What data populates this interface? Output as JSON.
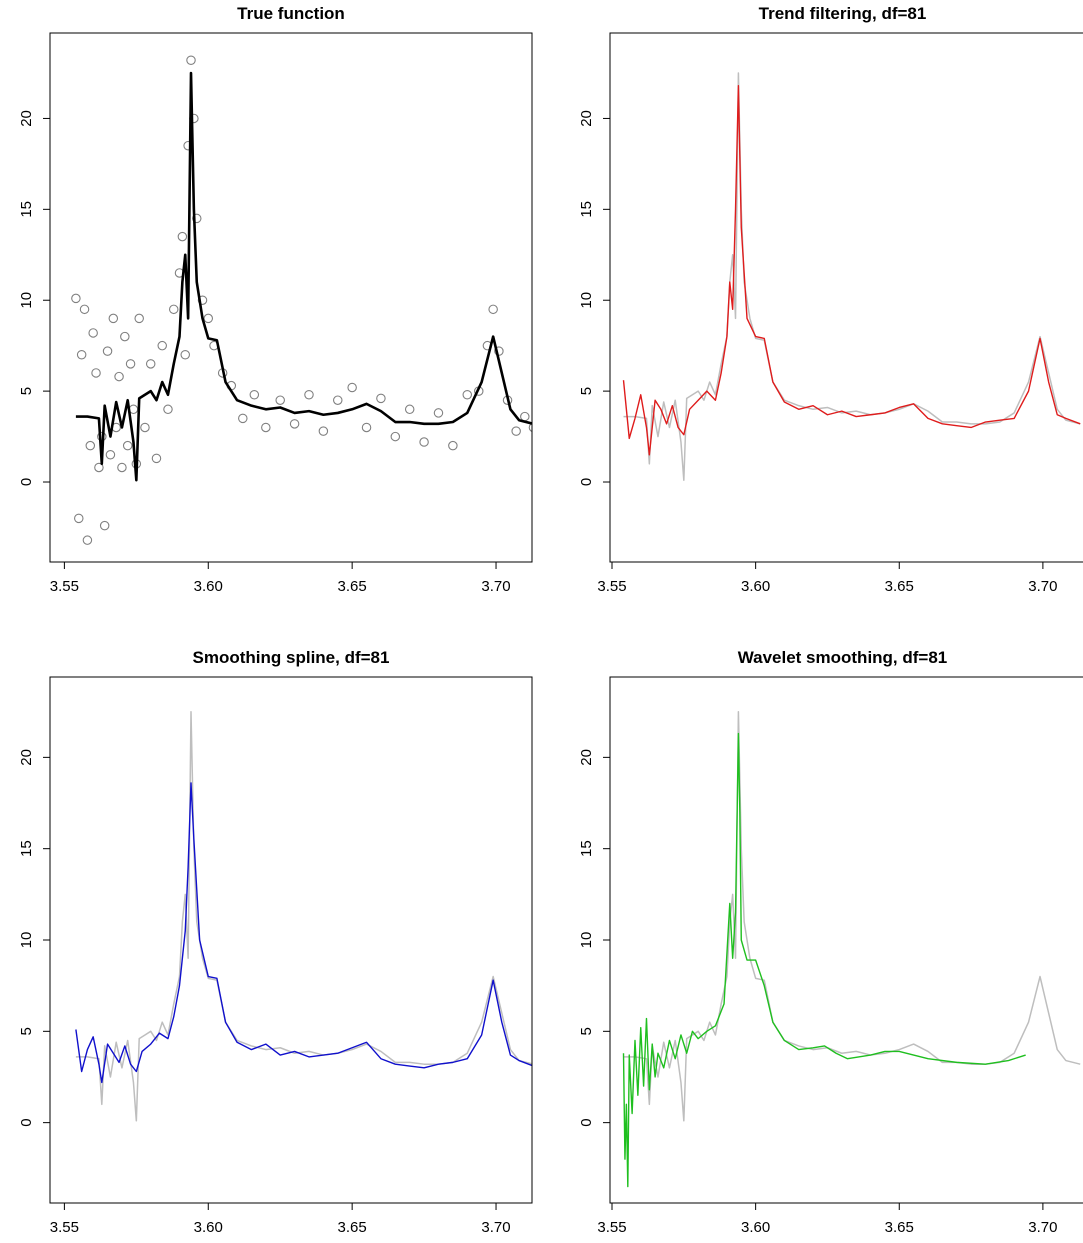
{
  "chart_data": [
    {
      "type": "line",
      "title": "True function",
      "xlim": [
        3.545,
        3.7125
      ],
      "ylim": [
        -4.4,
        24.7
      ],
      "xticks": [
        3.55,
        {
          "value": 3.6,
          "label": "3.60"
        },
        3.65,
        {
          "value": 3.7,
          "label": "3.70"
        }
      ],
      "yticks": [
        0,
        5,
        10,
        15,
        20
      ],
      "series": [
        {
          "style": "points",
          "color": "#808080",
          "x": [
            3.554,
            3.555,
            3.556,
            3.557,
            3.558,
            3.559,
            3.56,
            3.561,
            3.562,
            3.563,
            3.564,
            3.565,
            3.566,
            3.567,
            3.568,
            3.569,
            3.57,
            3.571,
            3.572,
            3.573,
            3.574,
            3.575,
            3.576,
            3.578,
            3.58,
            3.582,
            3.584,
            3.586,
            3.588,
            3.59,
            3.591,
            3.592,
            3.593,
            3.594,
            3.595,
            3.596,
            3.598,
            3.6,
            3.602,
            3.605,
            3.608,
            3.612,
            3.616,
            3.62,
            3.625,
            3.63,
            3.635,
            3.64,
            3.645,
            3.65,
            3.655,
            3.66,
            3.665,
            3.67,
            3.675,
            3.68,
            3.685,
            3.69,
            3.694,
            3.697,
            3.699,
            3.701,
            3.704,
            3.707,
            3.71,
            3.713
          ],
          "values": [
            10.1,
            -2.0,
            7.0,
            9.5,
            -3.2,
            2.0,
            8.2,
            6.0,
            0.8,
            2.5,
            -2.4,
            7.2,
            1.5,
            9.0,
            3.0,
            5.8,
            0.8,
            8.0,
            2.0,
            6.5,
            4.0,
            1.0,
            9.0,
            3.0,
            6.5,
            1.3,
            7.5,
            4.0,
            9.5,
            11.5,
            13.5,
            7.0,
            18.5,
            23.2,
            20.0,
            14.5,
            10.0,
            9.0,
            7.5,
            6.0,
            5.3,
            3.5,
            4.8,
            3.0,
            4.5,
            3.2,
            4.8,
            2.8,
            4.5,
            5.2,
            3.0,
            4.6,
            2.5,
            4.0,
            2.2,
            3.8,
            2.0,
            4.8,
            5.0,
            7.5,
            9.5,
            7.2,
            4.5,
            2.8,
            3.6,
            3.0
          ]
        },
        {
          "style": "line",
          "color": "#000000",
          "width": 2.6,
          "x": [
            3.554,
            3.558,
            3.562,
            3.563,
            3.564,
            3.566,
            3.568,
            3.57,
            3.572,
            3.574,
            3.575,
            3.576,
            3.578,
            3.58,
            3.582,
            3.584,
            3.586,
            3.588,
            3.59,
            3.591,
            3.592,
            3.593,
            3.594,
            3.595,
            3.596,
            3.598,
            3.6,
            3.603,
            3.606,
            3.61,
            3.615,
            3.62,
            3.625,
            3.63,
            3.635,
            3.64,
            3.645,
            3.65,
            3.655,
            3.66,
            3.665,
            3.67,
            3.675,
            3.68,
            3.685,
            3.69,
            3.695,
            3.699,
            3.702,
            3.705,
            3.708,
            3.713
          ],
          "values": [
            3.6,
            3.6,
            3.5,
            1.0,
            4.2,
            2.5,
            4.4,
            3.0,
            4.5,
            2.2,
            0.1,
            4.6,
            4.8,
            5.0,
            4.5,
            5.5,
            4.8,
            6.5,
            8.0,
            11.0,
            12.5,
            9.0,
            22.5,
            15.0,
            11.0,
            9.0,
            7.9,
            7.8,
            5.5,
            4.5,
            4.2,
            4.0,
            4.1,
            3.8,
            3.9,
            3.7,
            3.8,
            4.0,
            4.3,
            3.9,
            3.3,
            3.3,
            3.2,
            3.2,
            3.3,
            3.8,
            5.5,
            8.0,
            6.0,
            4.0,
            3.4,
            3.2
          ]
        }
      ]
    },
    {
      "type": "line",
      "title": "Trend filtering, df=81",
      "xlim": [
        3.5493,
        3.7164
      ],
      "ylim": [
        -4.4,
        24.7
      ],
      "xticks": [
        3.55,
        {
          "value": 3.6,
          "label": "3.60"
        },
        3.65,
        {
          "value": 3.7,
          "label": "3.70"
        }
      ],
      "yticks": [
        0,
        5,
        10,
        15,
        20
      ],
      "series": [
        {
          "style": "line",
          "color": "#bebebe",
          "width": 1.5,
          "x": [
            3.554,
            3.558,
            3.562,
            3.563,
            3.564,
            3.566,
            3.568,
            3.57,
            3.572,
            3.574,
            3.575,
            3.576,
            3.578,
            3.58,
            3.582,
            3.584,
            3.586,
            3.588,
            3.59,
            3.591,
            3.592,
            3.593,
            3.594,
            3.595,
            3.596,
            3.598,
            3.6,
            3.603,
            3.606,
            3.61,
            3.615,
            3.62,
            3.625,
            3.63,
            3.635,
            3.64,
            3.645,
            3.65,
            3.655,
            3.66,
            3.665,
            3.67,
            3.675,
            3.68,
            3.685,
            3.69,
            3.695,
            3.699,
            3.702,
            3.705,
            3.708,
            3.713
          ],
          "values": [
            3.6,
            3.6,
            3.5,
            1.0,
            4.2,
            2.5,
            4.4,
            3.0,
            4.5,
            2.2,
            0.1,
            4.6,
            4.8,
            5.0,
            4.5,
            5.5,
            4.8,
            6.5,
            8.0,
            11.0,
            12.5,
            9.0,
            22.5,
            15.0,
            11.0,
            9.0,
            7.9,
            7.8,
            5.5,
            4.5,
            4.2,
            4.0,
            4.1,
            3.8,
            3.9,
            3.7,
            3.8,
            4.0,
            4.3,
            3.9,
            3.3,
            3.3,
            3.2,
            3.2,
            3.3,
            3.8,
            5.5,
            8.0,
            6.0,
            4.0,
            3.4,
            3.2
          ]
        },
        {
          "style": "line",
          "color": "#df1c1c",
          "width": 1.4,
          "x": [
            3.554,
            3.556,
            3.558,
            3.56,
            3.562,
            3.563,
            3.565,
            3.567,
            3.569,
            3.571,
            3.573,
            3.575,
            3.577,
            3.58,
            3.583,
            3.586,
            3.588,
            3.59,
            3.591,
            3.592,
            3.593,
            3.594,
            3.595,
            3.597,
            3.6,
            3.603,
            3.606,
            3.61,
            3.615,
            3.62,
            3.625,
            3.63,
            3.635,
            3.64,
            3.645,
            3.65,
            3.655,
            3.66,
            3.665,
            3.67,
            3.675,
            3.68,
            3.685,
            3.69,
            3.695,
            3.699,
            3.702,
            3.705,
            3.708,
            3.713
          ],
          "values": [
            5.6,
            2.4,
            3.5,
            4.8,
            3.0,
            1.5,
            4.5,
            4.0,
            3.2,
            4.2,
            3.0,
            2.6,
            4.0,
            4.5,
            5.0,
            4.5,
            6.0,
            8.0,
            11.0,
            9.5,
            15.0,
            21.8,
            14.0,
            9.0,
            8.0,
            7.9,
            5.5,
            4.4,
            4.0,
            4.2,
            3.7,
            3.9,
            3.6,
            3.7,
            3.8,
            4.1,
            4.3,
            3.5,
            3.2,
            3.1,
            3.0,
            3.3,
            3.4,
            3.5,
            5.0,
            7.9,
            5.5,
            3.7,
            3.5,
            3.2
          ]
        }
      ]
    },
    {
      "type": "line",
      "title": "Smoothing spline, df=81",
      "xlim": [
        3.545,
        3.7125
      ],
      "ylim": [
        -4.4,
        24.4
      ],
      "xticks": [
        3.55,
        {
          "value": 3.6,
          "label": "3.60"
        },
        3.65,
        {
          "value": 3.7,
          "label": "3.70"
        }
      ],
      "yticks": [
        0,
        5,
        10,
        15,
        20
      ],
      "series": [
        {
          "style": "line",
          "color": "#bebebe",
          "width": 1.5,
          "x": [
            3.554,
            3.558,
            3.562,
            3.563,
            3.564,
            3.566,
            3.568,
            3.57,
            3.572,
            3.574,
            3.575,
            3.576,
            3.578,
            3.58,
            3.582,
            3.584,
            3.586,
            3.588,
            3.59,
            3.591,
            3.592,
            3.593,
            3.594,
            3.595,
            3.596,
            3.598,
            3.6,
            3.603,
            3.606,
            3.61,
            3.615,
            3.62,
            3.625,
            3.63,
            3.635,
            3.64,
            3.645,
            3.65,
            3.655,
            3.66,
            3.665,
            3.67,
            3.675,
            3.68,
            3.685,
            3.69,
            3.695,
            3.699,
            3.702,
            3.705,
            3.708,
            3.713
          ],
          "values": [
            3.6,
            3.6,
            3.5,
            1.0,
            4.2,
            2.5,
            4.4,
            3.0,
            4.5,
            2.2,
            0.1,
            4.6,
            4.8,
            5.0,
            4.5,
            5.5,
            4.8,
            6.5,
            8.0,
            11.0,
            12.5,
            9.0,
            22.5,
            15.0,
            11.0,
            9.0,
            7.9,
            7.8,
            5.5,
            4.5,
            4.2,
            4.0,
            4.1,
            3.8,
            3.9,
            3.7,
            3.8,
            4.0,
            4.3,
            3.9,
            3.3,
            3.3,
            3.2,
            3.2,
            3.3,
            3.8,
            5.5,
            8.0,
            6.0,
            4.0,
            3.4,
            3.2
          ]
        },
        {
          "style": "line",
          "color": "#1010cc",
          "width": 1.4,
          "x": [
            3.554,
            3.556,
            3.558,
            3.56,
            3.562,
            3.563,
            3.565,
            3.567,
            3.569,
            3.571,
            3.573,
            3.575,
            3.577,
            3.58,
            3.583,
            3.586,
            3.588,
            3.59,
            3.591,
            3.592,
            3.593,
            3.594,
            3.595,
            3.597,
            3.6,
            3.603,
            3.606,
            3.61,
            3.615,
            3.62,
            3.625,
            3.63,
            3.635,
            3.64,
            3.645,
            3.65,
            3.655,
            3.66,
            3.665,
            3.67,
            3.675,
            3.68,
            3.685,
            3.69,
            3.695,
            3.699,
            3.702,
            3.705,
            3.708,
            3.713
          ],
          "values": [
            5.1,
            2.8,
            4.0,
            4.7,
            3.2,
            2.2,
            4.3,
            3.8,
            3.3,
            4.2,
            3.2,
            2.8,
            3.9,
            4.3,
            4.9,
            4.6,
            5.8,
            7.5,
            9.0,
            10.5,
            14.0,
            18.6,
            15.5,
            10.0,
            8.0,
            7.9,
            5.5,
            4.4,
            4.0,
            4.3,
            3.7,
            3.9,
            3.6,
            3.7,
            3.8,
            4.1,
            4.4,
            3.5,
            3.2,
            3.1,
            3.0,
            3.2,
            3.3,
            3.5,
            4.8,
            7.8,
            5.5,
            3.7,
            3.4,
            3.1
          ]
        }
      ]
    },
    {
      "type": "line",
      "title": "Wavelet smoothing, df=81",
      "xlim": [
        3.5493,
        3.7164
      ],
      "ylim": [
        -4.4,
        24.4
      ],
      "xticks": [
        3.55,
        {
          "value": 3.6,
          "label": "3.60"
        },
        3.65,
        {
          "value": 3.7,
          "label": "3.70"
        }
      ],
      "yticks": [
        0,
        5,
        10,
        15,
        20
      ],
      "series": [
        {
          "style": "line",
          "color": "#bebebe",
          "width": 1.5,
          "x": [
            3.554,
            3.558,
            3.562,
            3.563,
            3.564,
            3.566,
            3.568,
            3.57,
            3.572,
            3.574,
            3.575,
            3.576,
            3.578,
            3.58,
            3.582,
            3.584,
            3.586,
            3.588,
            3.59,
            3.591,
            3.592,
            3.593,
            3.594,
            3.595,
            3.596,
            3.598,
            3.6,
            3.603,
            3.606,
            3.61,
            3.615,
            3.62,
            3.625,
            3.63,
            3.635,
            3.64,
            3.645,
            3.65,
            3.655,
            3.66,
            3.665,
            3.67,
            3.675,
            3.68,
            3.685,
            3.69,
            3.695,
            3.699,
            3.702,
            3.705,
            3.708,
            3.713
          ],
          "values": [
            3.6,
            3.6,
            3.5,
            1.0,
            4.2,
            2.5,
            4.4,
            3.0,
            4.5,
            2.2,
            0.1,
            4.6,
            4.8,
            5.0,
            4.5,
            5.5,
            4.8,
            6.5,
            8.0,
            11.0,
            12.5,
            9.0,
            22.5,
            15.0,
            11.0,
            9.0,
            7.9,
            7.8,
            5.5,
            4.5,
            4.2,
            4.0,
            4.1,
            3.8,
            3.9,
            3.7,
            3.8,
            4.0,
            4.3,
            3.9,
            3.3,
            3.3,
            3.2,
            3.2,
            3.3,
            3.8,
            5.5,
            8.0,
            6.0,
            4.0,
            3.4,
            3.2
          ]
        },
        {
          "style": "line",
          "color": "#1fbf1f",
          "width": 1.4,
          "x": [
            3.554,
            3.5545,
            3.555,
            3.5555,
            3.556,
            3.557,
            3.558,
            3.559,
            3.56,
            3.561,
            3.562,
            3.563,
            3.564,
            3.565,
            3.566,
            3.568,
            3.57,
            3.572,
            3.574,
            3.576,
            3.578,
            3.58,
            3.583,
            3.586,
            3.589,
            3.591,
            3.592,
            3.593,
            3.594,
            3.5945,
            3.595,
            3.597,
            3.6,
            3.603,
            3.606,
            3.61,
            3.615,
            3.62,
            3.624,
            3.628,
            3.632,
            3.64,
            3.645,
            3.65,
            3.655,
            3.66,
            3.67,
            3.68,
            3.688,
            3.694
          ],
          "values": [
            3.8,
            -2.0,
            1.0,
            -3.5,
            3.7,
            0.5,
            4.5,
            1.5,
            5.2,
            2.0,
            5.7,
            1.8,
            4.3,
            2.5,
            3.8,
            3.0,
            4.5,
            3.5,
            4.8,
            3.8,
            5.0,
            4.6,
            5.0,
            5.3,
            6.5,
            12.0,
            9.0,
            11.5,
            21.3,
            17.0,
            10.0,
            8.9,
            8.9,
            7.5,
            5.5,
            4.5,
            4.0,
            4.1,
            4.2,
            3.8,
            3.5,
            3.7,
            3.9,
            3.9,
            3.7,
            3.5,
            3.3,
            3.2,
            3.4,
            3.7
          ]
        }
      ]
    }
  ]
}
